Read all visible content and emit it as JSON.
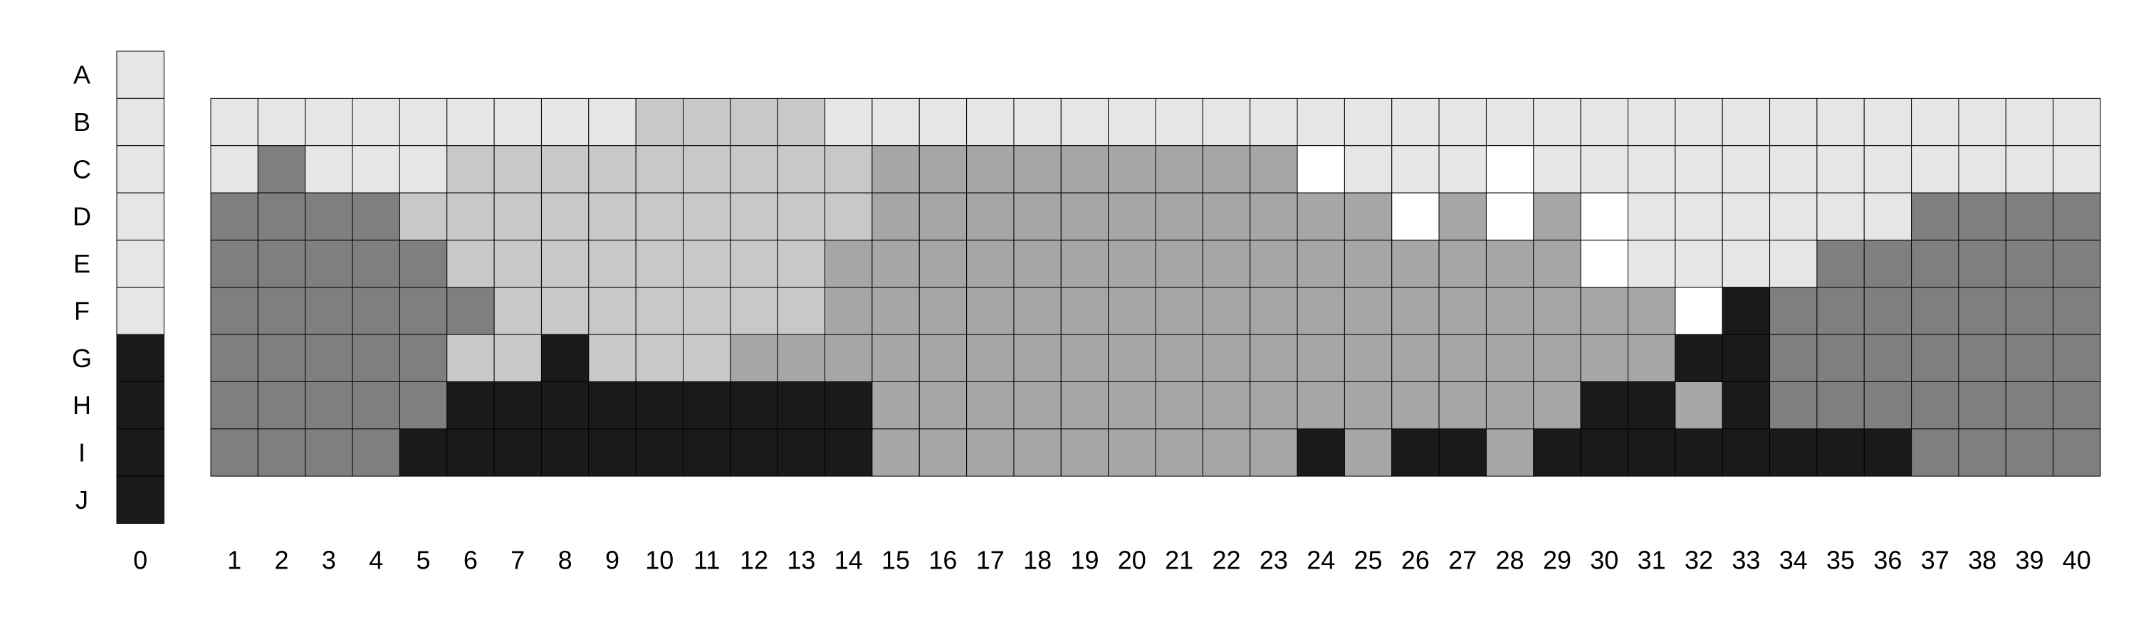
{
  "palette": {
    "W": "#ffffff",
    "L": "#e6e6e6",
    "M": "#c8c8c8",
    "G": "#a6a6a6",
    "D": "#7f7f7f",
    "K": "#1a1a1a"
  },
  "row_labels": [
    "A",
    "B",
    "C",
    "D",
    "E",
    "F",
    "G",
    "H",
    "I",
    "J"
  ],
  "column_labels": [
    "0",
    "1",
    "2",
    "3",
    "4",
    "5",
    "6",
    "7",
    "8",
    "9",
    "10",
    "11",
    "12",
    "13",
    "14",
    "15",
    "16",
    "17",
    "18",
    "19",
    "20",
    "21",
    "22",
    "23",
    "24",
    "25",
    "26",
    "27",
    "28",
    "29",
    "30",
    "31",
    "32",
    "33",
    "34",
    "35",
    "36",
    "37",
    "38",
    "39",
    "40"
  ],
  "reference_column": [
    "L",
    "L",
    "L",
    "L",
    "L",
    "L",
    "K",
    "K",
    "K",
    "K"
  ],
  "grid_rows": [
    {
      "row": "B",
      "cells": "LLLLLLLLLMMMMLLLLLLLLLLLLLLLLLLLLLLLLLLL"
    },
    {
      "row": "C",
      "cells": "LDLLLMMMMMMMMMGGGGGGGGGWLLLWLLLLLLLLLLLL"
    },
    {
      "row": "D",
      "cells": "DDDDMMMMMMMMMMGGGGGGGGGGGWGWGWLLLLLLDDDD"
    },
    {
      "row": "E",
      "cells": "DDDDDMMMMMMMMGGGGGGGGGGGGGGGGWLLLLDDDDDD"
    },
    {
      "row": "F",
      "cells": "DDDDDDMMMMMMMGGGGGGGGGGGGGGGGGGWKDDDDDDD"
    },
    {
      "row": "G",
      "cells": "DDDDDMMKMMMGGGGGGGGGGGGGGGGGGGGKKDDDDDDD"
    },
    {
      "row": "H",
      "cells": "DDDDDKKKKKKKKKGGGGGGGGGGGGGGGKKGKDDDDDDD"
    },
    {
      "row": "I",
      "cells": "DDDDKKKKKKKKKKGGGGGGGGGKGKKGKKKKKKKKDDDD"
    }
  ]
}
